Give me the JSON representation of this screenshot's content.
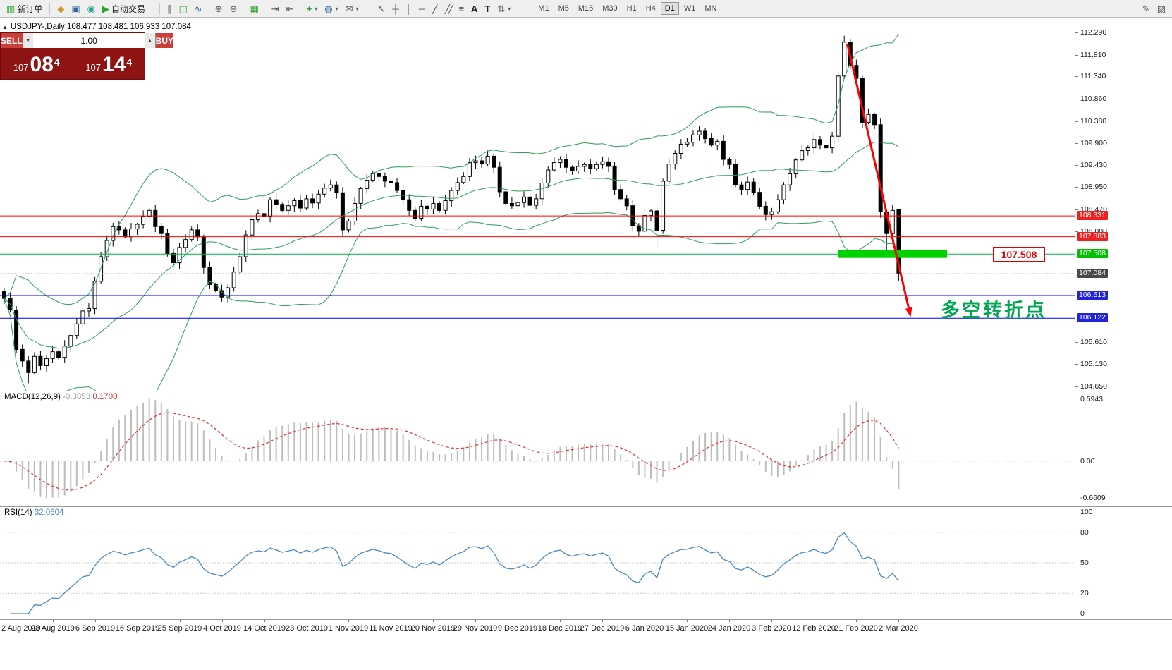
{
  "toolbar": {
    "new_order_label": "新订单",
    "autotrade_label": "自动交易",
    "timeframes": [
      "M1",
      "M5",
      "M15",
      "M30",
      "H1",
      "H4",
      "D1",
      "W1",
      "MN"
    ],
    "active_timeframe": "D1"
  },
  "icons": {
    "title_marker": "▲",
    "new_order": "▥",
    "market_watch": "◆",
    "data_window": "▣",
    "navigator": "◉",
    "autotrade_play": "▶",
    "chart_bars": "∥",
    "chart_candles": "◫",
    "chart_line": "∿",
    "zoom_in": "⊕",
    "zoom_out": "⊖",
    "tile_windows": "▦",
    "auto_scroll": "⇥",
    "chart_shift": "⇤",
    "indicators_add": "+",
    "templates": "◍",
    "objects_list": "✉",
    "dropdown": "▾",
    "cursor": "↖",
    "crosshair": "┼",
    "vertical_line": "│",
    "horizontal_line": "─",
    "trendline": "╱",
    "channel": "╱╱",
    "fibonacci": "≡",
    "text_tool": "A",
    "label_tool": "T",
    "arrows_tool": "⇅",
    "metaeditor": "✎",
    "notes": "▨",
    "spinner_down": "▾",
    "spinner_up": "▴"
  },
  "chart": {
    "title": "USDJPY-,Daily 108.477 108.481 106.933 107.084"
  },
  "trade": {
    "sell_label": "SELL",
    "buy_label": "BUY",
    "volume": "1.00",
    "sell_small": "107",
    "sell_big": "08",
    "sell_sup": "4",
    "buy_small": "107",
    "buy_big": "14",
    "buy_sup": "4"
  },
  "annotations": {
    "level_label": "107.508",
    "cn_note": "多空转折点"
  },
  "indicators": {
    "macd_name": "MACD(12,26,9)",
    "macd_value": "-0.3853",
    "macd_signal_value": "0.1700",
    "rsi_name": "RSI(14)",
    "rsi_value": "32.0604",
    "macd_axis": [
      "0.5943",
      "0.00",
      "-0.6609"
    ],
    "rsi_axis": [
      {
        "text": "100",
        "value": 100
      },
      {
        "text": "80",
        "value": 80
      },
      {
        "text": "50",
        "value": 50
      },
      {
        "text": "20",
        "value": 20
      },
      {
        "text": "0",
        "value": 0
      }
    ],
    "rsi_levels": [
      80,
      50,
      20
    ]
  },
  "price_axis": {
    "ticks": [
      "112.290",
      "111.810",
      "111.340",
      "110.860",
      "110.380",
      "109.900",
      "109.430",
      "108.950",
      "108.470",
      "108.000",
      "105.610",
      "105.130",
      "104.650"
    ],
    "highlighted": [
      {
        "text": "108.331",
        "bg": "#ef2020"
      },
      {
        "text": "107.883",
        "bg": "#ef2020"
      },
      {
        "text": "107.508",
        "bg": "#00c000"
      },
      {
        "text": "107.084",
        "bg": "#484848"
      },
      {
        "text": "106.613",
        "bg": "#2222dd"
      },
      {
        "text": "106.122",
        "bg": "#2222dd"
      }
    ]
  },
  "chart_data": {
    "type": "candlestick",
    "symbol": "USDJPY-",
    "timeframe": "Daily",
    "ylim": [
      104.65,
      112.29
    ],
    "last_bar_ohlc": {
      "open": 108.477,
      "high": 108.481,
      "low": 106.933,
      "close": 107.084
    },
    "candles": {
      "first_open": 106.7,
      "closes": [
        106.55,
        106.3,
        105.45,
        105.2,
        104.95,
        105.3,
        105.1,
        105.25,
        105.4,
        105.28,
        105.52,
        105.75,
        106.0,
        106.28,
        106.33,
        106.92,
        107.45,
        107.8,
        108.1,
        108.03,
        107.88,
        108.05,
        108.15,
        108.32,
        108.45,
        108.1,
        107.95,
        107.52,
        107.32,
        107.65,
        107.82,
        108.03,
        107.88,
        107.22,
        106.85,
        106.72,
        106.58,
        106.78,
        107.12,
        107.45,
        107.92,
        108.25,
        108.38,
        108.32,
        108.68,
        108.58,
        108.45,
        108.55,
        108.66,
        108.5,
        108.7,
        108.61,
        108.8,
        108.93,
        109.0,
        108.83,
        108.03,
        108.22,
        108.6,
        108.92,
        109.1,
        109.24,
        109.18,
        109.08,
        109.05,
        108.88,
        108.68,
        108.45,
        108.28,
        108.54,
        108.48,
        108.6,
        108.45,
        108.66,
        108.88,
        109.05,
        109.18,
        109.48,
        109.52,
        109.45,
        109.62,
        109.38,
        108.85,
        108.6,
        108.55,
        108.62,
        108.74,
        108.56,
        108.7,
        109.04,
        109.32,
        109.48,
        109.55,
        109.38,
        109.3,
        109.4,
        109.44,
        109.35,
        109.44,
        109.5,
        109.4,
        108.9,
        108.7,
        108.55,
        108.12,
        108.0,
        108.34,
        108.44,
        108.02,
        109.08,
        109.45,
        109.68,
        109.88,
        109.92,
        110.08,
        110.16,
        110.0,
        109.86,
        109.94,
        109.55,
        109.44,
        109.0,
        108.9,
        109.06,
        108.84,
        108.54,
        108.36,
        108.42,
        108.68,
        109.0,
        109.24,
        109.54,
        109.74,
        109.8,
        109.98,
        109.86,
        109.8,
        110.05,
        111.35,
        112.08,
        111.58,
        111.3,
        110.35,
        110.52,
        110.3,
        108.42,
        107.95,
        108.45,
        107.084
      ],
      "overrides": {
        "4": {
          "low": 104.72
        },
        "36": {
          "low": 106.48
        },
        "108": {
          "low": 107.62
        },
        "139": {
          "high": 112.22
        },
        "146": {
          "low": 107.55
        },
        "148": {
          "open": 108.477,
          "high": 108.481,
          "low": 106.933
        }
      }
    },
    "bollinger": {
      "period": 20,
      "deviation": 2,
      "color": "#2e9e5b"
    },
    "levels": [
      {
        "price": 108.331,
        "color": "#ff0000"
      },
      {
        "price": 107.883,
        "color": "#ff0000"
      },
      {
        "price": 107.508,
        "color": "#00b050"
      },
      {
        "price": 106.613,
        "color": "#0000ff"
      },
      {
        "price": 106.122,
        "color": "#0000ff"
      }
    ],
    "bid_line": {
      "price": 107.084,
      "color": "#999999"
    },
    "highlight_band": {
      "price": 107.508,
      "start_bar": 138,
      "end_bar": 156,
      "color": "#00d200",
      "thickness": 11
    },
    "trend_arrow": {
      "start_bar": 139.5,
      "start_price": 112.05,
      "end_bar": 150,
      "end_price": 106.15,
      "color": "#ff0000"
    },
    "macd": {
      "fast": 12,
      "slow": 26,
      "signal": 9,
      "hist_color": "#bdbdbd",
      "signal_color": "#e53030"
    },
    "rsi": {
      "period": 14,
      "color": "#4a86c8"
    },
    "dates": {
      "labels": [
        "2 Aug 2019",
        "28 Aug 2019",
        "6 Sep 2019",
        "16 Sep 2019",
        "25 Sep 2019",
        "4 Oct 2019",
        "14 Oct 2019",
        "23 Oct 2019",
        "1 Nov 2019",
        "11 Nov 2019",
        "20 Nov 2019",
        "29 Nov 2019",
        "9 Dec 2019",
        "18 Dec 2019",
        "27 Dec 2019",
        "6 Jan 2020",
        "15 Jan 2020",
        "24 Jan 2020",
        "3 Feb 2020",
        "12 Feb 2020",
        "21 Feb 2020",
        "2 Mar 2020"
      ],
      "first_bar": 1,
      "step": 7
    }
  }
}
